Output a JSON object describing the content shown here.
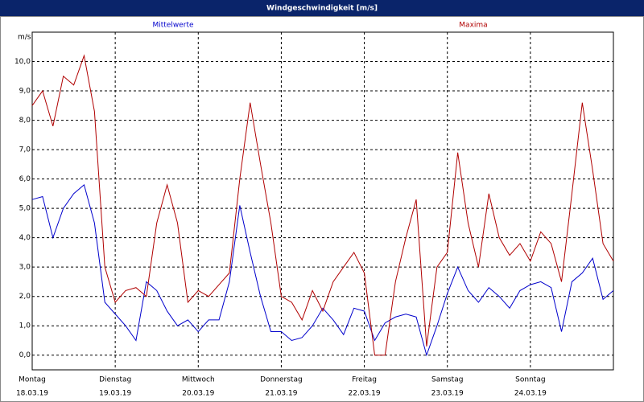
{
  "window_title": "Windgeschwindigkeit [m/s]",
  "chart_data": {
    "type": "line",
    "ylabel": "m/s",
    "x": [
      0,
      3,
      6,
      9,
      12,
      15,
      18,
      21,
      24,
      27,
      30,
      33,
      36,
      39,
      42,
      45,
      48,
      51,
      54,
      57,
      60,
      63,
      66,
      69,
      72,
      75,
      78,
      81,
      84,
      87,
      90,
      93,
      96,
      99,
      102,
      105,
      108,
      111,
      114,
      117,
      120,
      123,
      126,
      129,
      132,
      135,
      138,
      141,
      144,
      147,
      150,
      153,
      156,
      159,
      162,
      165,
      168
    ],
    "series": [
      {
        "name": "Mittelwerte",
        "color": "#0000cc",
        "values": [
          5.3,
          5.4,
          4.0,
          5.0,
          5.5,
          5.8,
          4.5,
          1.8,
          1.4,
          1.0,
          0.5,
          2.5,
          2.2,
          1.5,
          1.0,
          1.2,
          0.8,
          1.2,
          1.2,
          2.5,
          5.1,
          3.5,
          2.0,
          0.8,
          0.8,
          0.5,
          0.6,
          1.0,
          1.6,
          1.2,
          0.7,
          1.6,
          1.5,
          0.5,
          1.1,
          1.3,
          1.4,
          1.3,
          0.0,
          1.0,
          2.1,
          3.0,
          2.2,
          1.8,
          2.3,
          2.0,
          1.6,
          2.2,
          2.4,
          2.5,
          2.3,
          0.8,
          2.5,
          2.8,
          3.3,
          1.9,
          2.2
        ]
      },
      {
        "name": "Maxima",
        "color": "#b00000",
        "values": [
          8.5,
          9.0,
          7.8,
          9.5,
          9.2,
          10.2,
          8.3,
          3.0,
          1.8,
          2.2,
          2.3,
          2.0,
          4.5,
          5.8,
          4.5,
          1.8,
          2.2,
          2.0,
          2.4,
          2.8,
          6.0,
          8.6,
          6.5,
          4.5,
          2.0,
          1.8,
          1.2,
          2.2,
          1.5,
          2.5,
          3.0,
          3.5,
          2.8,
          0.0,
          0.0,
          2.5,
          4.0,
          5.3,
          0.3,
          3.0,
          3.5,
          6.9,
          4.5,
          3.0,
          5.5,
          4.0,
          3.4,
          3.8,
          3.2,
          4.2,
          3.8,
          2.5,
          5.5,
          8.6,
          6.3,
          3.8,
          3.2
        ]
      }
    ],
    "xlim": [
      0,
      168
    ],
    "xticks": [
      {
        "value": 0,
        "label": "Montag"
      },
      {
        "value": 24,
        "label": "Dienstag"
      },
      {
        "value": 48,
        "label": "Mittwoch"
      },
      {
        "value": 72,
        "label": "Donnerstag"
      },
      {
        "value": 96,
        "label": "Freitag"
      },
      {
        "value": 120,
        "label": "Samstag"
      },
      {
        "value": 144,
        "label": "Sonntag"
      }
    ],
    "xtick_dates": [
      "18.03.19",
      "19.03.19",
      "20.03.19",
      "21.03.19",
      "22.03.19",
      "23.03.19",
      "24.03.19"
    ],
    "ylim": [
      -0.5,
      11
    ],
    "yticks": [
      {
        "value": 0,
        "label": "0,0"
      },
      {
        "value": 1,
        "label": "1,0"
      },
      {
        "value": 2,
        "label": "2,0"
      },
      {
        "value": 3,
        "label": "3,0"
      },
      {
        "value": 4,
        "label": "4,0"
      },
      {
        "value": 5,
        "label": "5,0"
      },
      {
        "value": 6,
        "label": "6,0"
      },
      {
        "value": 7,
        "label": "7,0"
      },
      {
        "value": 8,
        "label": "8,0"
      },
      {
        "value": 9,
        "label": "9,0"
      },
      {
        "value": 10,
        "label": "10,0"
      }
    ],
    "grid": true
  }
}
